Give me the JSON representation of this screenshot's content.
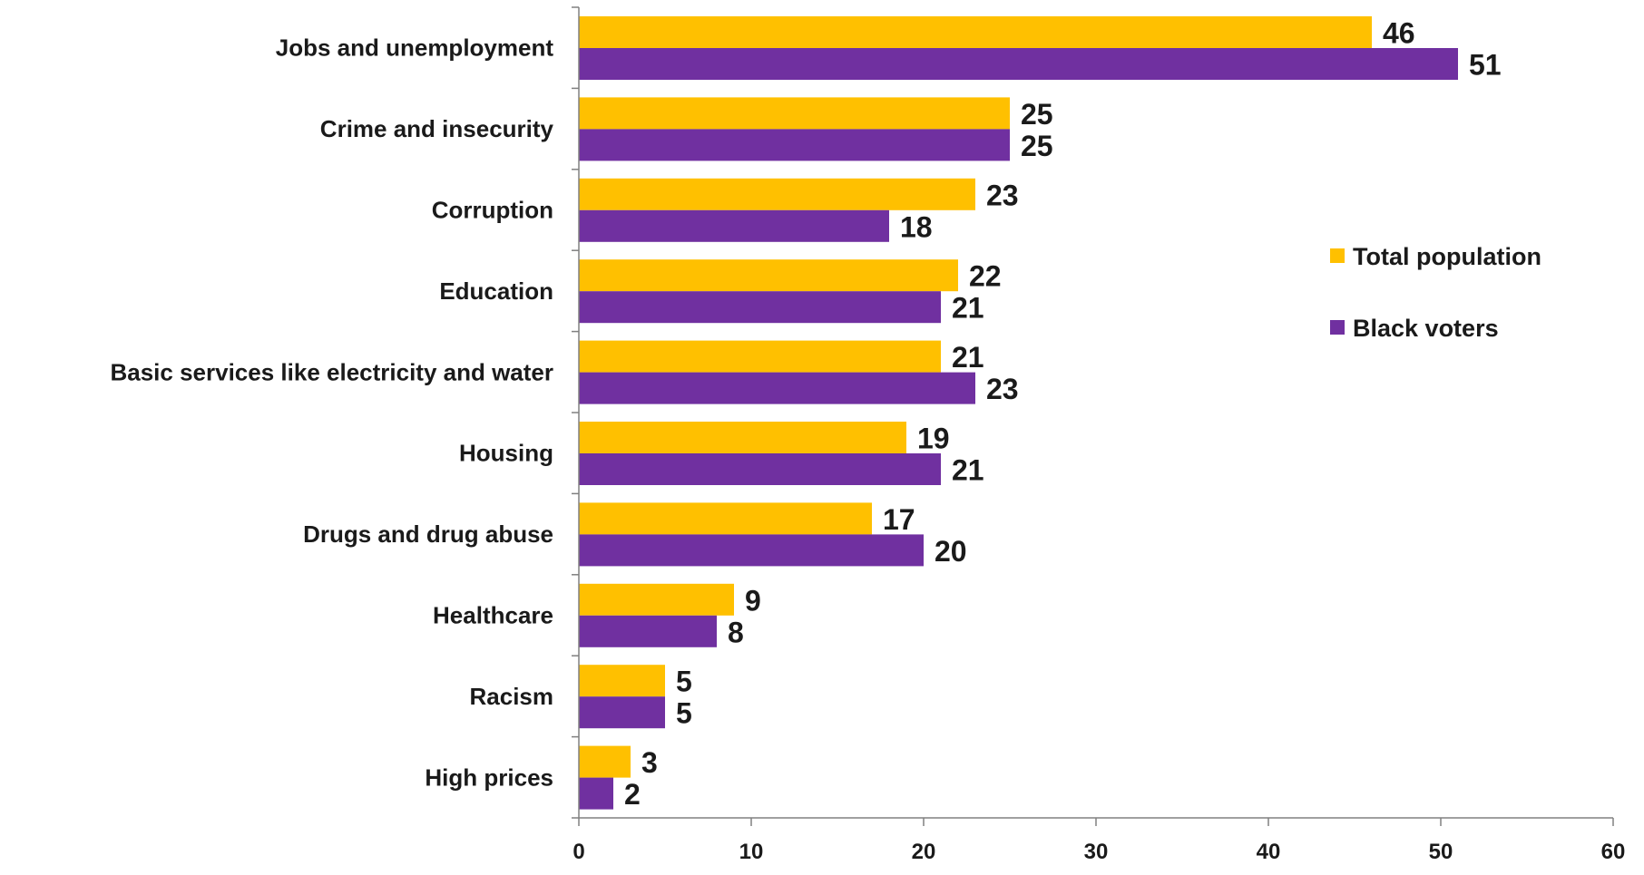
{
  "chart_data": {
    "type": "bar",
    "orientation": "horizontal",
    "categories": [
      "Jobs and unemployment",
      "Crime and insecurity",
      "Corruption",
      "Education",
      "Basic services like electricity and water",
      "Housing",
      "Drugs and drug abuse",
      "Healthcare",
      "Racism",
      "High prices"
    ],
    "series": [
      {
        "name": "Total population",
        "color": "#FFC000",
        "values": [
          46,
          25,
          23,
          22,
          21,
          19,
          17,
          9,
          5,
          3
        ]
      },
      {
        "name": "Black voters",
        "color": "#7030A0",
        "values": [
          51,
          25,
          18,
          21,
          23,
          21,
          20,
          8,
          5,
          2
        ]
      }
    ],
    "title": "",
    "xlabel": "",
    "ylabel": "",
    "xlim": [
      0,
      60
    ],
    "x_ticks": [
      0,
      10,
      20,
      30,
      40,
      50,
      60
    ],
    "grid": false,
    "legend_position": "right"
  }
}
